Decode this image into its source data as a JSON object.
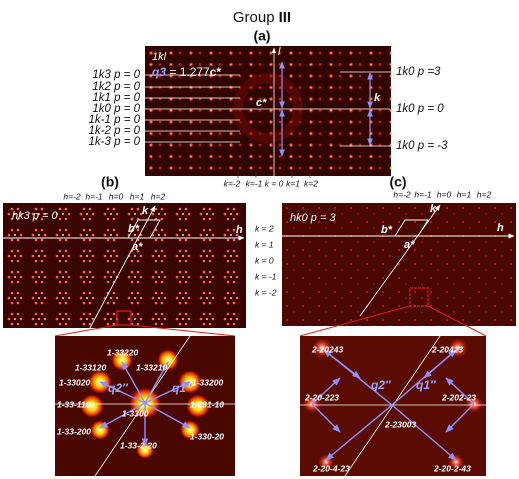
{
  "header": {
    "title": "Group",
    "title_bold": "III"
  },
  "panel_a": {
    "label": "(a)",
    "inset_title": "1kl",
    "q3_name": "q3",
    "q3_equals": " = 1.277",
    "q3_unit": "c*",
    "l_axis": "l",
    "c_star": "c*",
    "k_axis": "k",
    "left_labels": [
      "1k3 p = 0",
      "1k2 p = 0",
      "1k1 p = 0",
      "1k0 p = 0",
      "1k-1 p = 0",
      "1k-2 p = 0",
      "1k-3 p = 0"
    ],
    "right_labels": [
      "1k0 p =3",
      "1k0 p = 0",
      "1k0 p = -3"
    ],
    "k_labels": [
      "k=-2",
      "k=-1",
      "k = 0",
      "k=1",
      "k=2"
    ]
  },
  "panel_b": {
    "label": "(b)",
    "inset_title": "hk3 p = 0",
    "h_labels": [
      "h=-2",
      "h=-1",
      "h=0",
      "h=1",
      "h=2"
    ],
    "k_axis": "k",
    "h_axis": "h",
    "b_star": "b*",
    "a_star": "a*",
    "k_labels": [
      "k = 2",
      "k = 1",
      "k = 0",
      "k = -1",
      "k = -2"
    ],
    "zoom": {
      "q2": "q2″",
      "q1": "q1″",
      "spots": [
        "1-33220",
        "1-33120",
        "1-33210",
        "1-33020",
        "1-33200",
        "1-33-110",
        "1-331-10",
        "1-3300",
        "1-33-200",
        "1-330-20",
        "1-33-2-20"
      ]
    }
  },
  "panel_c": {
    "label": "(c)",
    "inset_title": "hk0 p = 3",
    "h_labels": [
      "h=-2",
      "h=-1",
      "h=0",
      "h=1",
      "h=2"
    ],
    "k_axis": "k",
    "h_axis": "h",
    "b_star": "b*",
    "a_star": "a*",
    "zoom": {
      "q2": "q2″",
      "q1": "q1″",
      "spots": [
        "2-20243",
        "2-20423",
        "2-20-223",
        "2-202-23",
        "2-23003",
        "2-20-4-23",
        "2-20-2-43"
      ]
    }
  }
}
